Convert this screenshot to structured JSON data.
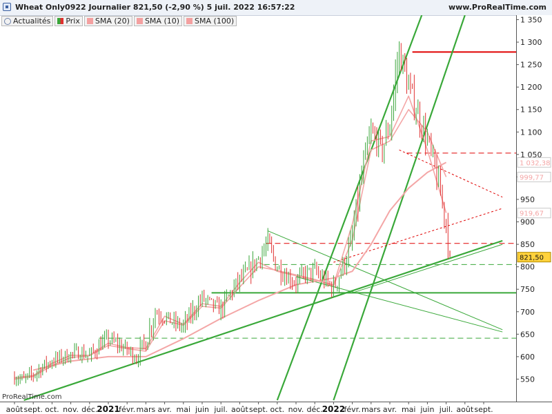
{
  "header": {
    "title": "Wheat Only0922 Journalier 821,50 (-2,90 %) 5 juil. 2022 16:57:22",
    "site": "www.ProRealTime.com"
  },
  "legend": {
    "refresh_label": "Actualités",
    "items": [
      {
        "label": "Prix",
        "color": "#3aa53a"
      },
      {
        "label": "SMA (20)",
        "color": "#f4a0a0"
      },
      {
        "label": "SMA (10)",
        "color": "#f4a0a0"
      },
      {
        "label": "SMA (100)",
        "color": "#f4a0a0"
      }
    ]
  },
  "watermark": "ProRealTime.com",
  "colors": {
    "up": "#3aa53a",
    "down": "#e03030",
    "sma": "#f4a6a6",
    "trend": "#39a839",
    "resistance": "#e00000",
    "last_bg": "#ffd23c"
  },
  "chart_data": {
    "type": "line",
    "price_scale": "linear",
    "ylim": [
      500,
      1360
    ],
    "xlim": [
      "2020-08-01",
      "2022-09-30"
    ],
    "y_ticks": [
      550,
      600,
      650,
      700,
      750,
      800,
      850,
      900,
      950,
      "1 000",
      "1 050",
      "1 100",
      "1 150",
      "1 200",
      "1 250",
      "1 300",
      "1 350"
    ],
    "x_ticks": [
      {
        "label": "août"
      },
      {
        "label": "sept."
      },
      {
        "label": "oct."
      },
      {
        "label": "nov."
      },
      {
        "label": "déc."
      },
      {
        "label": "2021",
        "bold": true
      },
      {
        "label": "févr."
      },
      {
        "label": "mars"
      },
      {
        "label": "avr."
      },
      {
        "label": "mai"
      },
      {
        "label": "juin"
      },
      {
        "label": "juil."
      },
      {
        "label": "août"
      },
      {
        "label": "sept."
      },
      {
        "label": "oct."
      },
      {
        "label": "nov."
      },
      {
        "label": "déc."
      },
      {
        "label": "2022",
        "bold": true
      },
      {
        "label": "févr."
      },
      {
        "label": "mars"
      },
      {
        "label": "avr."
      },
      {
        "label": "mai"
      },
      {
        "label": "juin"
      },
      {
        "label": "juil."
      },
      {
        "label": "août"
      },
      {
        "label": "sept."
      }
    ],
    "series": [
      {
        "name": "Prix",
        "style": "bars",
        "x": [
          0.0,
          0.5,
          1.0,
          1.5,
          2.0,
          2.5,
          3.0,
          3.5,
          4.0,
          4.5,
          5.0,
          5.5,
          6.0,
          6.5,
          7.0,
          7.5,
          8.0,
          8.5,
          9.0,
          9.5,
          10.0,
          10.5,
          11.0,
          11.5,
          12.0,
          12.5,
          13.0,
          13.5,
          14.0,
          14.5,
          15.0,
          15.5,
          16.0,
          16.5,
          17.0,
          17.5,
          18.0,
          18.5,
          19.0,
          19.3,
          19.6,
          20.0,
          20.5,
          21.0,
          21.5,
          22.0,
          22.5,
          23.0,
          23.2
        ],
        "values": [
          555,
          548,
          560,
          578,
          590,
          598,
          605,
          610,
          600,
          625,
          638,
          628,
          615,
          600,
          635,
          700,
          688,
          675,
          665,
          700,
          730,
          715,
          705,
          740,
          770,
          790,
          820,
          850,
          800,
          780,
          765,
          785,
          790,
          770,
          752,
          800,
          860,
          1000,
          1100,
          1080,
          1060,
          1120,
          1280,
          1200,
          1140,
          1080,
          1000,
          900,
          821.5
        ]
      },
      {
        "name": "SMA (10)",
        "style": "line",
        "x": [
          0,
          1,
          2,
          3,
          4,
          5,
          6,
          7,
          8,
          9,
          10,
          11,
          12,
          13,
          14,
          15,
          16,
          17,
          18,
          19,
          20,
          21,
          22,
          23
        ],
        "values": [
          553,
          558,
          585,
          603,
          603,
          630,
          620,
          618,
          690,
          672,
          718,
          712,
          765,
          810,
          790,
          780,
          770,
          760,
          895,
          1080,
          1090,
          1180,
          1060,
          920
        ]
      },
      {
        "name": "SMA (20)",
        "style": "line",
        "x": [
          0,
          1,
          2,
          3,
          4,
          5,
          6,
          7,
          8,
          9,
          10,
          11,
          12,
          13,
          14,
          15,
          16,
          17,
          18,
          19,
          20,
          21,
          22,
          23
        ],
        "values": [
          550,
          556,
          580,
          598,
          602,
          625,
          618,
          612,
          680,
          670,
          712,
          708,
          755,
          800,
          792,
          782,
          772,
          758,
          860,
          1060,
          1080,
          1150,
          1100,
          1000
        ]
      },
      {
        "name": "SMA (100)",
        "style": "line",
        "x": [
          1,
          3,
          5,
          7,
          9,
          11,
          13,
          15,
          17,
          18,
          19,
          20,
          21,
          22,
          23
        ],
        "values": [
          570,
          590,
          600,
          600,
          640,
          685,
          725,
          760,
          775,
          790,
          850,
          925,
          975,
          1010,
          1032.38
        ]
      }
    ],
    "price_labels": [
      {
        "value": 1032.38,
        "text": "1 032,38",
        "color": "#f4a6a6"
      },
      {
        "value": 999.77,
        "text": "999,77",
        "color": "#f4a6a6"
      },
      {
        "value": 919.67,
        "text": "919,67",
        "color": "#f4a6a6"
      },
      {
        "value": 821.5,
        "text": "821,50",
        "color": "#111111",
        "highlight": true
      }
    ],
    "horizontal_levels": [
      {
        "value": 1278,
        "color": "#e00000",
        "style": "solid",
        "from_x": 21.2
      },
      {
        "value": 1053,
        "color": "#e00000",
        "style": "dashed",
        "from_x": 20.9
      },
      {
        "value": 852,
        "color": "#e00000",
        "style": "dashed",
        "from_x": 13.4
      },
      {
        "value": 805,
        "color": "#39a839",
        "style": "dashed",
        "from_x": 13.3
      },
      {
        "value": 742,
        "color": "#39a839",
        "style": "solid",
        "from_x": 10.5
      },
      {
        "value": 641,
        "color": "#39a839",
        "style": "dashed",
        "from_x": 4.5
      }
    ],
    "trend_lines": [
      {
        "points": [
          [
            0.5,
            503
          ],
          [
            26.0,
            858
          ]
        ],
        "color": "#39a839",
        "style": "solid"
      },
      {
        "points": [
          [
            14.0,
            503
          ],
          [
            21.7,
            1360
          ]
        ],
        "color": "#39a839",
        "style": "solid"
      },
      {
        "points": [
          [
            17.0,
            503
          ],
          [
            24.0,
            1360
          ]
        ],
        "color": "#39a839",
        "style": "solid"
      },
      {
        "points": [
          [
            18.0,
            742
          ],
          [
            26.0,
            850
          ]
        ],
        "color": "#39a839",
        "style": "thin"
      },
      {
        "points": [
          [
            15.0,
            778
          ],
          [
            26.0,
            655
          ]
        ],
        "color": "#39a839",
        "style": "thin"
      },
      {
        "points": [
          [
            13.5,
            880
          ],
          [
            26.0,
            660
          ]
        ],
        "color": "#39a839",
        "style": "thin"
      },
      {
        "points": [
          [
            20.5,
            1060
          ],
          [
            26.0,
            955
          ]
        ],
        "color": "#e00000",
        "style": "dotted"
      },
      {
        "points": [
          [
            17.0,
            810
          ],
          [
            26.0,
            930
          ]
        ],
        "color": "#e00000",
        "style": "dotted"
      }
    ]
  }
}
